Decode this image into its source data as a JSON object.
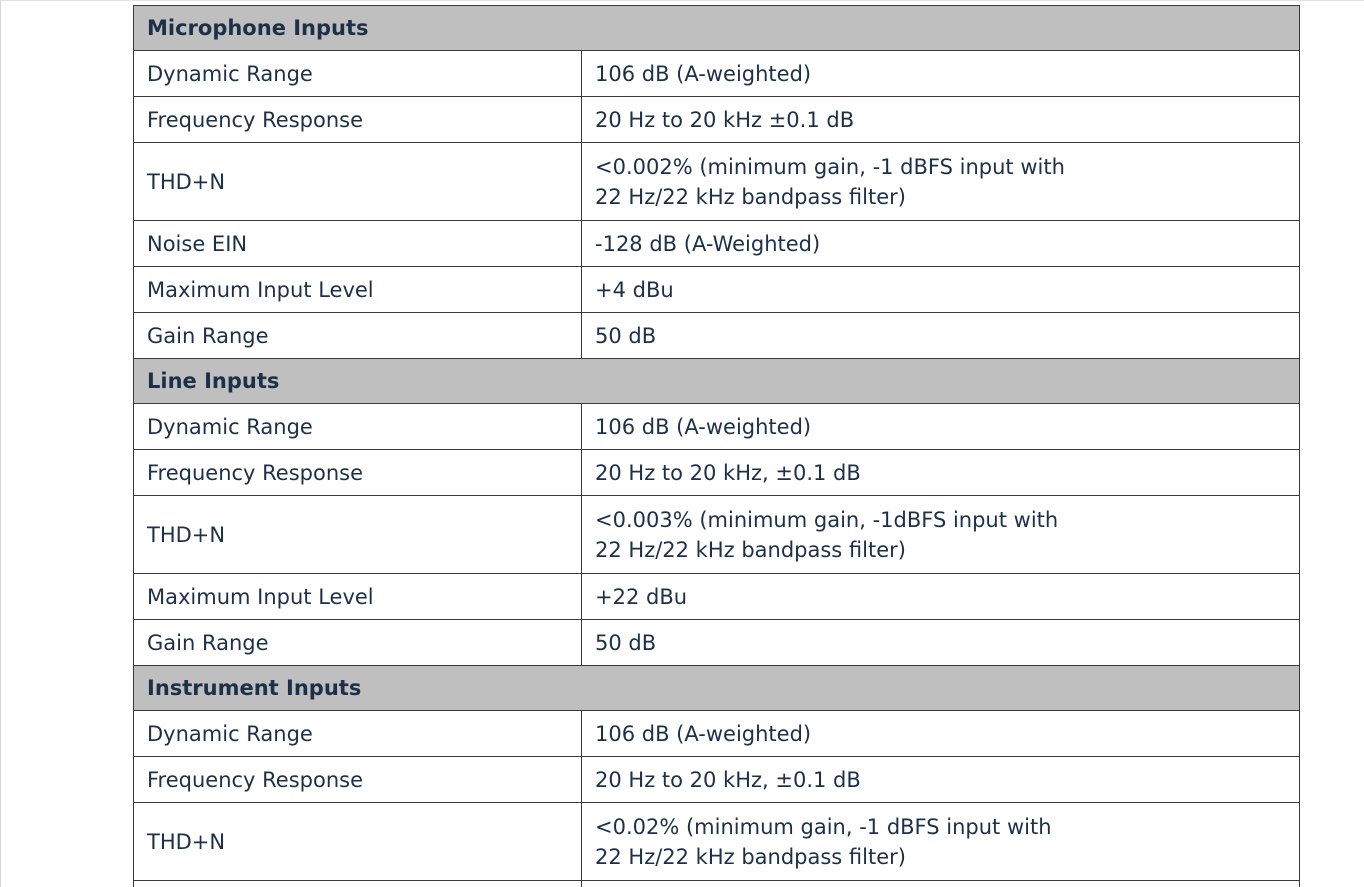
{
  "sections": [
    {
      "title": "Microphone Inputs",
      "rows": [
        {
          "label": "Dynamic Range",
          "value": "106 dB (A-weighted)"
        },
        {
          "label": "Frequency Response",
          "value": "20 Hz to 20 kHz ±0.1 dB"
        },
        {
          "label": "THD+N",
          "value": "<0.002%  (minimum gain, -1 dBFS input with",
          "value2": "22 Hz/22 kHz bandpass filter)"
        },
        {
          "label": "Noise EIN",
          "value": "-128 dB (A-Weighted)"
        },
        {
          "label": "Maximum Input Level",
          "value": "+4 dBu"
        },
        {
          "label": "Gain Range",
          "value": "50 dB"
        }
      ]
    },
    {
      "title": "Line Inputs",
      "rows": [
        {
          "label": "Dynamic Range",
          "value": "106 dB (A-weighted)"
        },
        {
          "label": "Frequency Response",
          "value": "20 Hz to 20 kHz, ±0.1 dB"
        },
        {
          "label": "THD+N",
          "value": "<0.003% (minimum gain, -1dBFS input with",
          "value2": "22 Hz/22 kHz bandpass filter)"
        },
        {
          "label": "Maximum Input Level",
          "value": "+22 dBu"
        },
        {
          "label": "Gain Range",
          "value": "50 dB"
        }
      ]
    },
    {
      "title": "Instrument Inputs",
      "rows": [
        {
          "label": "Dynamic Range",
          "value": "106 dB (A-weighted)"
        },
        {
          "label": "Frequency Response",
          "value": "20 Hz to 20 kHz, ±0.1 dB"
        },
        {
          "label": "THD+N",
          "value": "<0.02% (minimum gain, -1 dBFS input with",
          "value2": "22 Hz/22 kHz bandpass filter)"
        },
        {
          "label": "",
          "value": ""
        }
      ]
    }
  ]
}
